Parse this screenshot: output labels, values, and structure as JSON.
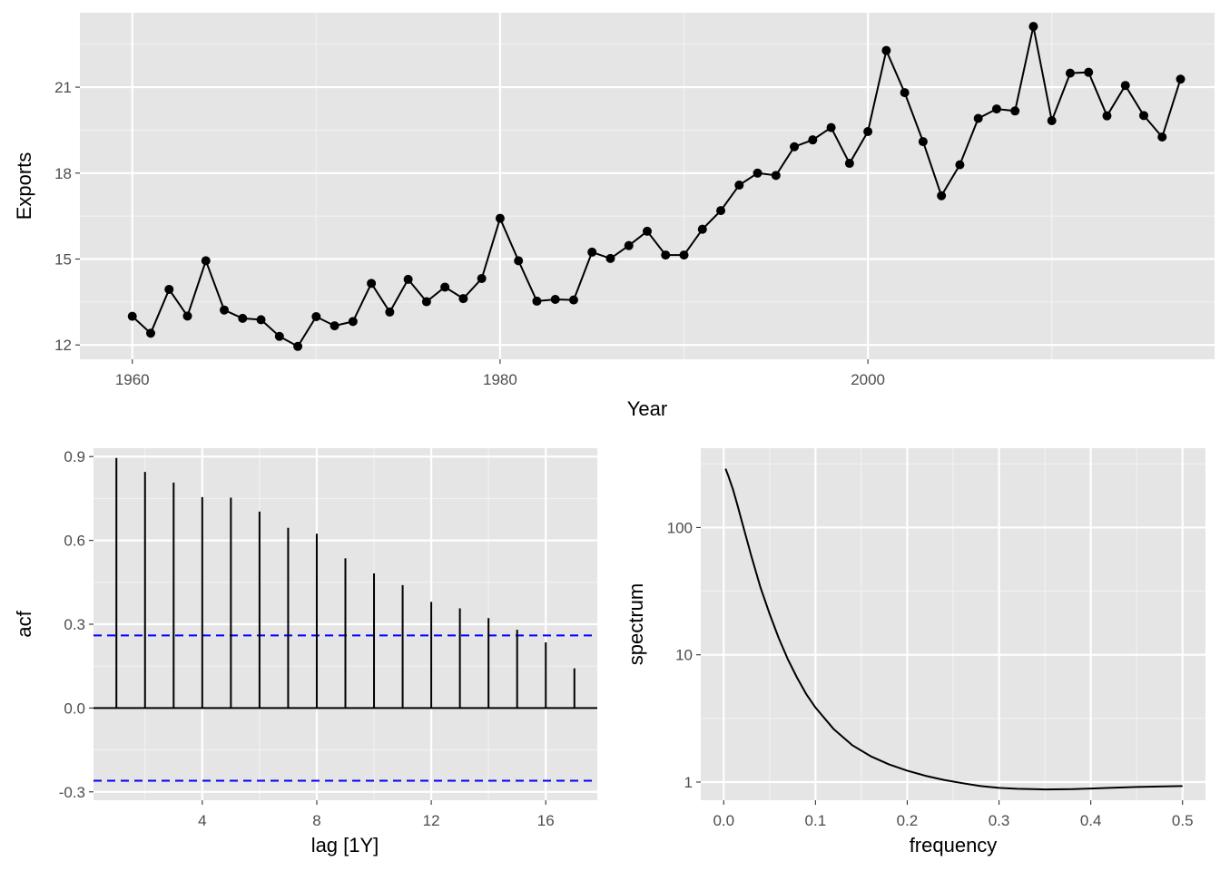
{
  "chart_data": [
    {
      "type": "line",
      "xlabel": "Year",
      "ylabel": "Exports",
      "xlim": [
        1957.15,
        2018.85
      ],
      "ylim": [
        11.5,
        23.6
      ],
      "x_ticks": [
        1960,
        1980,
        2000
      ],
      "y_ticks": [
        12,
        15,
        18,
        21
      ],
      "grid": true,
      "markers": true,
      "line_color": "#000000",
      "panel_background": "#e5e5e5",
      "x": [
        1960,
        1961,
        1962,
        1963,
        1964,
        1965,
        1966,
        1967,
        1968,
        1969,
        1970,
        1971,
        1972,
        1973,
        1974,
        1975,
        1976,
        1977,
        1978,
        1979,
        1980,
        1981,
        1982,
        1983,
        1984,
        1985,
        1986,
        1987,
        1988,
        1989,
        1990,
        1991,
        1992,
        1993,
        1994,
        1995,
        1996,
        1997,
        1998,
        1999,
        2000,
        2001,
        2002,
        2003,
        2004,
        2005,
        2006,
        2007,
        2008,
        2009,
        2010,
        2011,
        2012,
        2013,
        2014,
        2015,
        2016,
        2017
      ],
      "values": [
        13.0,
        12.41,
        13.94,
        13.01,
        14.94,
        13.22,
        12.93,
        12.88,
        12.3,
        11.95,
        12.99,
        12.67,
        12.82,
        14.15,
        13.15,
        14.29,
        13.51,
        14.02,
        13.62,
        14.32,
        16.42,
        14.94,
        13.53,
        13.59,
        13.57,
        15.24,
        15.02,
        15.47,
        15.97,
        15.14,
        15.14,
        16.04,
        16.69,
        17.58,
        18.0,
        17.92,
        18.92,
        19.16,
        19.59,
        18.34,
        19.45,
        22.28,
        20.81,
        19.1,
        17.21,
        18.29,
        19.91,
        20.24,
        20.17,
        23.12,
        19.83,
        21.49,
        21.52,
        20.0,
        21.06,
        20.01,
        19.26,
        21.28
      ]
    },
    {
      "type": "bar",
      "xlabel": "lag [1Y]",
      "ylabel": "acf",
      "xlim": [
        0.2,
        17.8
      ],
      "ylim": [
        -0.33,
        0.93
      ],
      "x_ticks": [
        4,
        8,
        12,
        16
      ],
      "y_ticks": [
        -0.3,
        0.0,
        0.3,
        0.6,
        0.9
      ],
      "y_tick_labels": [
        "-0.3",
        "0.0",
        "0.3",
        "0.6",
        "0.9"
      ],
      "grid": true,
      "lags": [
        1,
        2,
        3,
        4,
        5,
        6,
        7,
        8,
        9,
        10,
        11,
        12,
        13,
        14,
        15,
        16,
        17
      ],
      "values": [
        0.895,
        0.845,
        0.807,
        0.755,
        0.753,
        0.703,
        0.645,
        0.624,
        0.536,
        0.482,
        0.44,
        0.38,
        0.357,
        0.322,
        0.28,
        0.235,
        0.142
      ],
      "confidence_bounds": [
        0.26,
        -0.26
      ],
      "bound_color": "#0000ff"
    },
    {
      "type": "line",
      "xlabel": "frequency",
      "ylabel": "spectrum",
      "xlim": [
        -0.025,
        0.525
      ],
      "ylim": [
        0.72,
        420
      ],
      "log_y": true,
      "x_ticks": [
        0.0,
        0.1,
        0.2,
        0.3,
        0.4,
        0.5
      ],
      "x_tick_labels": [
        "0.0",
        "0.1",
        "0.2",
        "0.3",
        "0.4",
        "0.5"
      ],
      "y_ticks": [
        1,
        10,
        100
      ],
      "y_tick_labels": [
        "1",
        "10",
        "100"
      ],
      "grid": true,
      "x": [
        0.002,
        0.005,
        0.01,
        0.015,
        0.02,
        0.03,
        0.04,
        0.05,
        0.06,
        0.07,
        0.08,
        0.09,
        0.1,
        0.12,
        0.14,
        0.16,
        0.18,
        0.2,
        0.22,
        0.24,
        0.26,
        0.28,
        0.3,
        0.32,
        0.35,
        0.38,
        0.4,
        0.42,
        0.45,
        0.48,
        0.5
      ],
      "values": [
        290,
        255,
        200,
        150,
        110,
        60,
        34,
        21,
        13.5,
        9.2,
        6.6,
        4.9,
        3.85,
        2.6,
        1.95,
        1.6,
        1.38,
        1.23,
        1.12,
        1.04,
        0.98,
        0.93,
        0.9,
        0.885,
        0.875,
        0.88,
        0.89,
        0.9,
        0.915,
        0.925,
        0.93
      ]
    }
  ]
}
